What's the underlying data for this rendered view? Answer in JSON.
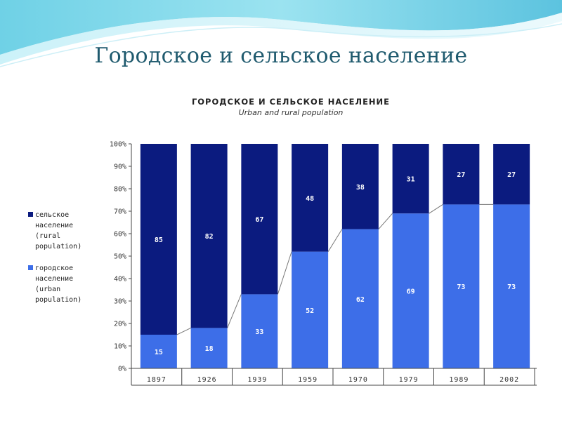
{
  "slide": {
    "title": "Городское и сельское население"
  },
  "chart_data": {
    "type": "bar",
    "stacked": true,
    "percent": true,
    "title": "ГОРОДСКОЕ И СЕЛЬСКОЕ НАСЕЛЕНИЕ",
    "subtitle": "Urban and rural population",
    "categories": [
      "1897",
      "1926",
      "1939",
      "1959",
      "1970",
      "1979",
      "1989",
      "2002"
    ],
    "series": [
      {
        "name": "городское население (urban population)",
        "values": [
          15,
          18,
          33,
          52,
          62,
          69,
          73,
          73
        ],
        "color": "#3d6ee8"
      },
      {
        "name": "сельское население (rural population)",
        "values": [
          85,
          82,
          67,
          48,
          38,
          31,
          27,
          27
        ],
        "color": "#0b1b7f"
      }
    ],
    "ylim": [
      0,
      100
    ],
    "yticks": [
      "0%",
      "10%",
      "20%",
      "30%",
      "40%",
      "50%",
      "60%",
      "70%",
      "80%",
      "90%",
      "100%"
    ],
    "grid": false,
    "legend_position": "left",
    "legend": [
      {
        "text": "сельское\nнаселение\n(rural\npopulation)",
        "color": "#0b1b7f"
      },
      {
        "text": "городское\nнаселение\n(urban\npopulation)",
        "color": "#3d6ee8"
      }
    ]
  }
}
